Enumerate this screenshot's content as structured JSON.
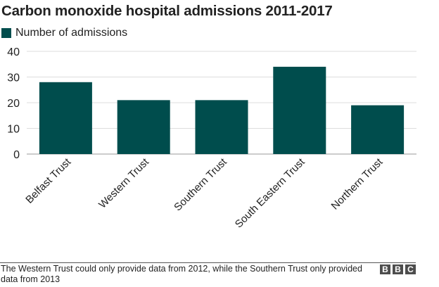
{
  "chart_data": {
    "type": "bar",
    "title": "Carbon monoxide hospital admissions 2011-2017",
    "categories": [
      "Belfast Trust",
      "Western Trust",
      "Southern Trust",
      "South Eastern Trust",
      "Northern Trust"
    ],
    "series": [
      {
        "name": "Number of admissions",
        "values": [
          28,
          21,
          21,
          34,
          19
        ]
      }
    ],
    "ylim": [
      0,
      40
    ],
    "yticks": [
      0,
      10,
      20,
      30,
      40
    ],
    "grid": true,
    "legend_position": "top-left",
    "bar_color": "#004d4d"
  },
  "footnote": "The Western Trust could only provide data from 2012, while the Southern Trust only provided data from 2013",
  "branding": {
    "logo_letters": [
      "B",
      "B",
      "C"
    ]
  }
}
